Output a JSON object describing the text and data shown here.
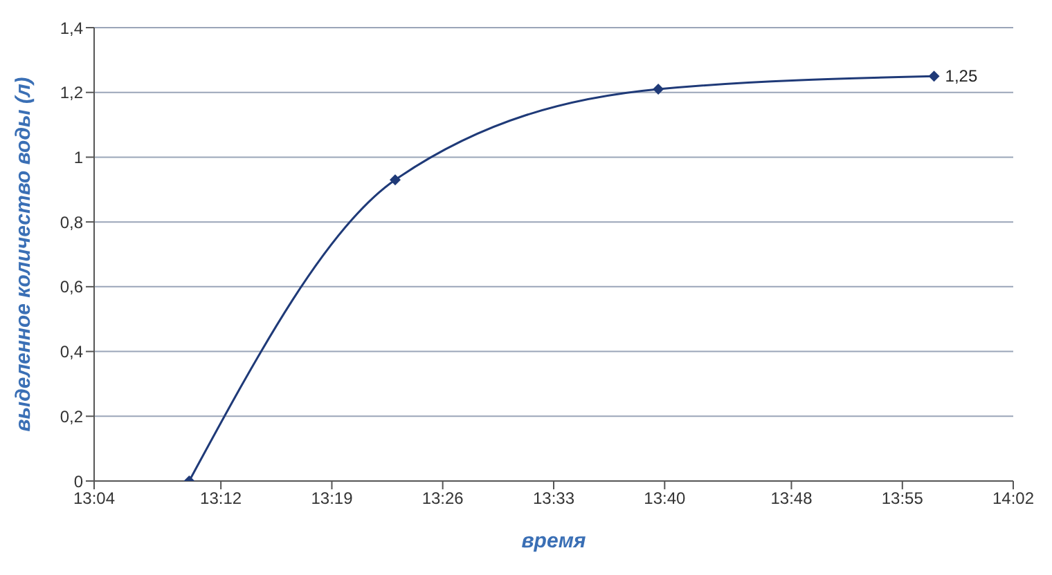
{
  "chart_data": {
    "type": "line",
    "xlabel": "время",
    "ylabel": "выделенное количество воды (л)",
    "x": [
      13.1667,
      13.3833,
      13.66,
      13.95
    ],
    "series": [
      {
        "color": "#1f3a78",
        "values": [
          0,
          0.93,
          1.21,
          1.25
        ],
        "value_labels": [
          null,
          null,
          null,
          "1,25"
        ]
      }
    ],
    "xlim": [
      13.0667,
      14.0333
    ],
    "xticks": [
      {
        "value": 13.0667,
        "label": "13:04"
      },
      {
        "value": 13.2,
        "label": "13:12"
      },
      {
        "value": 13.3167,
        "label": "13:19"
      },
      {
        "value": 13.4333,
        "label": "13:26"
      },
      {
        "value": 13.55,
        "label": "13:33"
      },
      {
        "value": 13.6667,
        "label": "13:40"
      },
      {
        "value": 13.8,
        "label": "13:48"
      },
      {
        "value": 13.9167,
        "label": "13:55"
      },
      {
        "value": 14.0333,
        "label": "14:02"
      }
    ],
    "ylim": [
      0,
      1.4
    ],
    "yticks": [
      {
        "value": 0,
        "label": "0"
      },
      {
        "value": 0.2,
        "label": "0,2"
      },
      {
        "value": 0.4,
        "label": "0,4"
      },
      {
        "value": 0.6,
        "label": "0,6"
      },
      {
        "value": 0.8,
        "label": "0,8"
      },
      {
        "value": 1,
        "label": "1"
      },
      {
        "value": 1.2,
        "label": "1,2"
      },
      {
        "value": 1.4,
        "label": "1,4"
      }
    ],
    "grid": "y",
    "marker": "diamond",
    "line_style": "solid",
    "legend": false
  }
}
